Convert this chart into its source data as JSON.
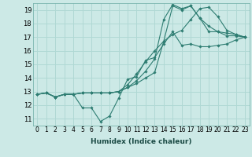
{
  "xlabel": "Humidex (Indice chaleur)",
  "ylabel": "",
  "background_color": "#cce9e6",
  "grid_color": "#b0d8d4",
  "line_color": "#2e7d72",
  "xlim": [
    -0.5,
    23.5
  ],
  "ylim": [
    10.5,
    19.5
  ],
  "xticks": [
    0,
    1,
    2,
    3,
    4,
    5,
    6,
    7,
    8,
    9,
    10,
    11,
    12,
    13,
    14,
    15,
    16,
    17,
    18,
    19,
    20,
    21,
    22,
    23
  ],
  "yticks": [
    11,
    12,
    13,
    14,
    15,
    16,
    17,
    18,
    19
  ],
  "lines": [
    {
      "x": [
        0,
        1,
        2,
        3,
        4,
        5,
        6,
        7,
        8,
        9,
        10,
        11,
        12,
        13,
        14,
        15,
        16,
        17,
        18,
        19,
        20,
        21,
        22,
        23
      ],
      "y": [
        12.8,
        12.9,
        12.6,
        12.8,
        12.8,
        11.8,
        11.8,
        10.8,
        11.2,
        12.5,
        13.9,
        14.1,
        15.3,
        15.5,
        16.5,
        17.4,
        16.4,
        16.5,
        16.3,
        16.3,
        16.4,
        16.5,
        16.8,
        17.0
      ]
    },
    {
      "x": [
        0,
        1,
        2,
        3,
        4,
        5,
        6,
        7,
        8,
        9,
        10,
        11,
        12,
        13,
        14,
        15,
        16,
        17,
        18,
        19,
        20,
        21,
        22,
        23
      ],
      "y": [
        12.8,
        12.9,
        12.6,
        12.8,
        12.8,
        12.9,
        12.9,
        12.9,
        12.9,
        13.0,
        13.3,
        13.6,
        14.0,
        14.4,
        16.7,
        19.3,
        19.0,
        19.3,
        18.4,
        17.8,
        17.4,
        17.1,
        17.1,
        17.0
      ]
    },
    {
      "x": [
        0,
        1,
        2,
        3,
        4,
        5,
        6,
        7,
        8,
        9,
        10,
        11,
        12,
        13,
        14,
        15,
        16,
        17,
        18,
        19,
        20,
        21,
        22,
        23
      ],
      "y": [
        12.8,
        12.9,
        12.6,
        12.8,
        12.8,
        12.9,
        12.9,
        12.9,
        12.9,
        13.0,
        13.3,
        13.8,
        14.5,
        15.4,
        18.3,
        19.4,
        19.1,
        19.3,
        18.4,
        17.4,
        17.4,
        17.3,
        17.2,
        17.0
      ]
    },
    {
      "x": [
        0,
        1,
        2,
        3,
        4,
        5,
        6,
        7,
        8,
        9,
        10,
        11,
        12,
        13,
        14,
        15,
        16,
        17,
        18,
        19,
        20,
        21,
        22,
        23
      ],
      "y": [
        12.8,
        12.9,
        12.6,
        12.8,
        12.8,
        12.9,
        12.9,
        12.9,
        12.9,
        13.0,
        13.5,
        14.3,
        15.2,
        16.0,
        16.7,
        17.2,
        17.5,
        18.3,
        19.1,
        19.2,
        18.5,
        17.5,
        17.2,
        17.0
      ]
    }
  ],
  "figsize": [
    3.2,
    2.0
  ],
  "dpi": 100,
  "xlabel_fontsize": 6.5,
  "tick_fontsize": 5.5,
  "ytick_fontsize": 6.0
}
